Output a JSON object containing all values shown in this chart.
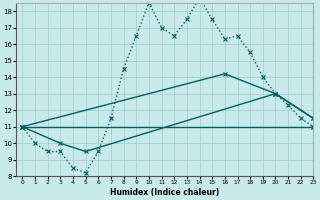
{
  "xlabel": "Humidex (Indice chaleur)",
  "background_color": "#c8eaea",
  "grid_color": "#a0ccc8",
  "line_color": "#006060",
  "xlim": [
    -0.5,
    23
  ],
  "ylim": [
    8,
    18.5
  ],
  "yticks": [
    8,
    9,
    10,
    11,
    12,
    13,
    14,
    15,
    16,
    17,
    18
  ],
  "xticks": [
    0,
    1,
    2,
    3,
    4,
    5,
    6,
    7,
    8,
    9,
    10,
    11,
    12,
    13,
    14,
    15,
    16,
    17,
    18,
    19,
    20,
    21,
    22,
    23
  ],
  "lines": [
    {
      "x": [
        0,
        1,
        2,
        3,
        4,
        5,
        6,
        7,
        8,
        9,
        10,
        11,
        12,
        13,
        14,
        15,
        16,
        17,
        18,
        19,
        20,
        21,
        22,
        23
      ],
      "y": [
        11,
        10,
        9.5,
        9.5,
        8.5,
        8.2,
        9.5,
        11.5,
        14.5,
        16.5,
        18.5,
        17,
        16.5,
        17.5,
        18.8,
        17.5,
        16.3,
        16.5,
        15.5,
        14,
        13,
        12.3,
        11.5,
        11
      ],
      "linestyle": "dotted",
      "marker": "x",
      "linewidth": 1.0,
      "markersize": 3.0
    },
    {
      "x": [
        0,
        16,
        20,
        23
      ],
      "y": [
        11,
        14.2,
        13,
        11.5
      ],
      "linestyle": "solid",
      "marker": "x",
      "linewidth": 1.0,
      "markersize": 3.0
    },
    {
      "x": [
        0,
        3,
        5,
        20,
        23
      ],
      "y": [
        11,
        10,
        9.5,
        13,
        11.5
      ],
      "linestyle": "solid",
      "marker": "x",
      "linewidth": 1.0,
      "markersize": 3.0
    },
    {
      "x": [
        0,
        23
      ],
      "y": [
        11,
        11
      ],
      "linestyle": "solid",
      "marker": "x",
      "linewidth": 1.0,
      "markersize": 3.0
    }
  ]
}
